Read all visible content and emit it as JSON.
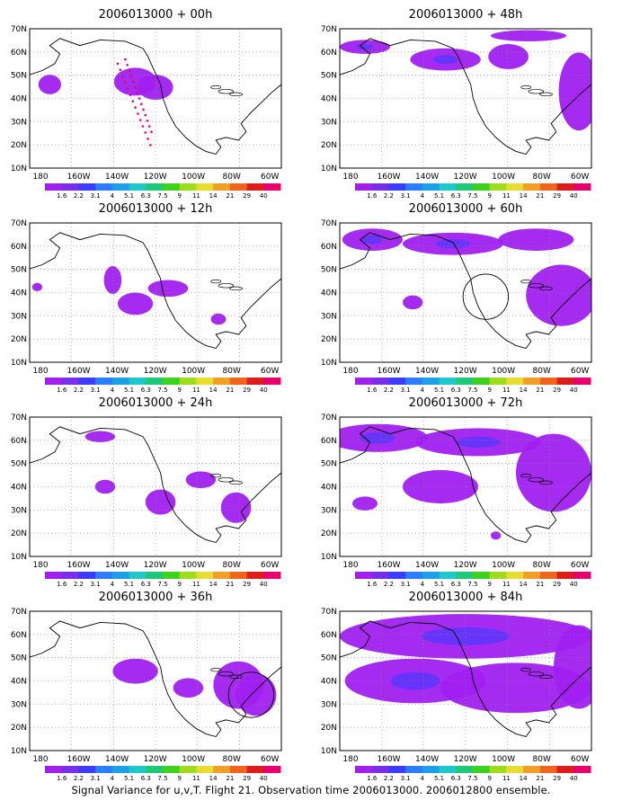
{
  "panels": [
    {
      "title": "2006013000 + 00h",
      "blobs": [
        [
          0.08,
          0.6,
          0.045,
          0.07
        ],
        [
          0.42,
          0.62,
          0.085,
          0.1
        ],
        [
          0.5,
          0.58,
          0.07,
          0.09
        ]
      ],
      "circle": null,
      "obs_dots": true
    },
    {
      "title": "2006013000 + 12h",
      "blobs": [
        [
          0.33,
          0.59,
          0.035,
          0.1
        ],
        [
          0.42,
          0.42,
          0.07,
          0.08
        ],
        [
          0.55,
          0.53,
          0.08,
          0.06
        ],
        [
          0.75,
          0.31,
          0.03,
          0.04
        ],
        [
          0.03,
          0.54,
          0.02,
          0.03
        ]
      ],
      "circle": null,
      "obs_dots": false
    },
    {
      "title": "2006013000 + 24h",
      "blobs": [
        [
          0.28,
          0.86,
          0.06,
          0.04
        ],
        [
          0.3,
          0.5,
          0.04,
          0.05
        ],
        [
          0.52,
          0.39,
          0.06,
          0.09
        ],
        [
          0.68,
          0.55,
          0.06,
          0.06
        ],
        [
          0.82,
          0.35,
          0.06,
          0.11
        ]
      ],
      "circle": null,
      "obs_dots": false
    },
    {
      "title": "2006013000 + 36h",
      "blobs": [
        [
          0.42,
          0.57,
          0.09,
          0.09
        ],
        [
          0.63,
          0.45,
          0.06,
          0.07
        ],
        [
          0.83,
          0.47,
          0.1,
          0.17
        ],
        [
          0.9,
          0.4,
          0.08,
          0.15
        ]
      ],
      "circle": [
        0.88,
        0.4,
        0.09
      ],
      "obs_dots": false
    },
    {
      "title": "2006013000 + 48h",
      "blobs": [
        [
          0.1,
          0.87,
          0.1,
          0.05
        ],
        [
          0.42,
          0.78,
          0.14,
          0.08
        ],
        [
          0.67,
          0.8,
          0.08,
          0.09
        ],
        [
          0.95,
          0.55,
          0.08,
          0.28
        ],
        [
          0.75,
          0.95,
          0.15,
          0.04
        ]
      ],
      "circle": null,
      "obs_dots": false
    },
    {
      "title": "2006013000 + 60h",
      "blobs": [
        [
          0.13,
          0.88,
          0.12,
          0.08
        ],
        [
          0.45,
          0.85,
          0.2,
          0.08
        ],
        [
          0.78,
          0.88,
          0.15,
          0.08
        ],
        [
          0.88,
          0.48,
          0.14,
          0.22
        ],
        [
          0.29,
          0.43,
          0.04,
          0.05
        ]
      ],
      "circle": [
        0.58,
        0.47,
        0.09
      ],
      "obs_dots": false
    },
    {
      "title": "2006013000 + 72h",
      "blobs": [
        [
          0.15,
          0.85,
          0.2,
          0.1
        ],
        [
          0.55,
          0.82,
          0.25,
          0.1
        ],
        [
          0.4,
          0.5,
          0.15,
          0.12
        ],
        [
          0.85,
          0.6,
          0.15,
          0.28
        ],
        [
          0.1,
          0.38,
          0.05,
          0.05
        ],
        [
          0.62,
          0.15,
          0.02,
          0.03
        ]
      ],
      "circle": null,
      "obs_dots": false
    },
    {
      "title": "2006013000 + 84h",
      "blobs": [
        [
          0.5,
          0.82,
          0.5,
          0.16
        ],
        [
          0.3,
          0.5,
          0.28,
          0.16
        ],
        [
          0.7,
          0.45,
          0.3,
          0.18
        ],
        [
          0.95,
          0.6,
          0.1,
          0.3
        ]
      ],
      "circle": null,
      "obs_dots": false
    }
  ],
  "lat_labels": [
    "70N",
    "60N",
    "50N",
    "40N",
    "30N",
    "20N",
    "10N"
  ],
  "lon_labels": [
    "180",
    "160W",
    "140W",
    "120W",
    "100W",
    "80W",
    "60W"
  ],
  "colorbar": {
    "labels": [
      "1.6",
      "2.2",
      "3.1",
      "4",
      "5.1",
      "6.3",
      "7.5",
      "9",
      "11",
      "14",
      "21",
      "29",
      "40"
    ],
    "colors": [
      "#a020f0",
      "#7a2ee8",
      "#3c3cff",
      "#2e7cff",
      "#1ea0e6",
      "#1ec8c8",
      "#1ec878",
      "#3cd21e",
      "#a0dc1e",
      "#e6dc32",
      "#f0a028",
      "#f0641e",
      "#dc1e1e",
      "#e6006e"
    ]
  },
  "footer": "Signal Variance for u,v,T. Flight 21. Observation time 2006013000. 2006012800 ensemble."
}
